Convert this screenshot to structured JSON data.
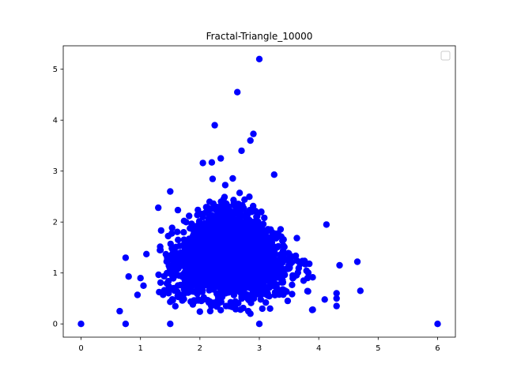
{
  "chart_data": {
    "type": "scatter",
    "title": "Fractal-Triangle_10000",
    "xlabel": "",
    "ylabel": "",
    "xlim": [
      -0.3,
      6.3
    ],
    "ylim": [
      -0.26,
      5.46
    ],
    "xticks": [
      0,
      1,
      2,
      3,
      4,
      5,
      6
    ],
    "yticks": [
      0,
      1,
      2,
      3,
      4,
      5
    ],
    "grid": false,
    "legend": {
      "position": "upper right",
      "entries": []
    },
    "series": [
      {
        "color": "#0000ff",
        "marker": "circle",
        "point_count": 10000,
        "notable_points": [
          [
            0,
            0
          ],
          [
            1.5,
            0
          ],
          [
            3,
            0
          ],
          [
            6,
            0
          ],
          [
            0.75,
            0
          ],
          [
            0.75,
            1.3
          ],
          [
            0.65,
            0.25
          ],
          [
            0.8,
            0.93
          ],
          [
            2.25,
            3.9
          ],
          [
            2.63,
            4.55
          ],
          [
            3.0,
            5.2
          ],
          [
            2.9,
            3.73
          ],
          [
            2.85,
            3.6
          ],
          [
            2.7,
            3.4
          ],
          [
            2.2,
            3.17
          ],
          [
            2.05,
            3.16
          ],
          [
            1.5,
            2.6
          ],
          [
            1.3,
            2.28
          ],
          [
            2.35,
            3.25
          ],
          [
            3.25,
            2.93
          ],
          [
            4.13,
            1.95
          ],
          [
            4.65,
            1.22
          ],
          [
            4.7,
            0.65
          ],
          [
            4.35,
            1.15
          ],
          [
            4.3,
            0.6
          ],
          [
            4.3,
            0.5
          ],
          [
            4.3,
            0.35
          ],
          [
            4.1,
            0.48
          ],
          [
            0.95,
            0.57
          ],
          [
            1.0,
            0.9
          ],
          [
            1.1,
            1.37
          ],
          [
            1.05,
            0.75
          ],
          [
            2.85,
            0.2
          ],
          [
            2.0,
            0.24
          ],
          [
            2.35,
            0.27
          ],
          [
            3.05,
            0.3
          ]
        ],
        "cluster": {
          "center": [
            2.5,
            1.35
          ],
          "x_range": [
            1.3,
            3.9
          ],
          "y_range": [
            0.25,
            3.3
          ]
        }
      }
    ]
  }
}
